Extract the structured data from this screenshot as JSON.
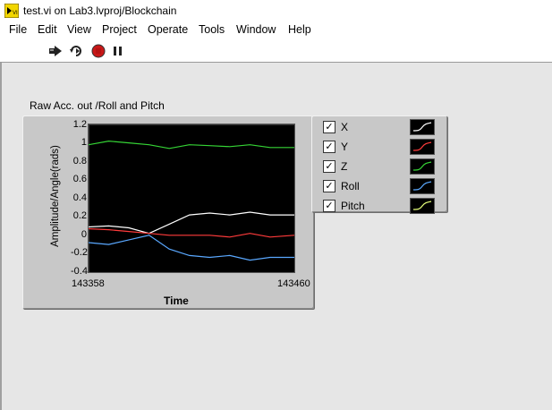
{
  "window": {
    "title": "test.vi on Lab3.lvproj/Blockchain"
  },
  "menu": [
    "File",
    "Edit",
    "View",
    "Project",
    "Operate",
    "Tools",
    "Window",
    "Help"
  ],
  "toolbar": {
    "buttons": [
      "run-arrow-icon",
      "run-continuously-icon",
      "abort-icon",
      "pause-icon"
    ]
  },
  "graph": {
    "label": "Raw Acc. out /Roll and Pitch",
    "ylabel": "Amplitude/Angle(rads)",
    "xlabel": "Time",
    "yticks": [
      "1.2",
      "1",
      "0.8",
      "0.6",
      "0.4",
      "0.2",
      "0",
      "-0.2",
      "-0.4"
    ],
    "xmin_label": "143358",
    "xmax_label": "143460"
  },
  "legend": {
    "items": [
      {
        "name": "X",
        "checked": true,
        "color": "#ffffff"
      },
      {
        "name": "Y",
        "checked": true,
        "color": "#ff3b3b"
      },
      {
        "name": "Z",
        "checked": true,
        "color": "#35d435"
      },
      {
        "name": "Roll",
        "checked": true,
        "color": "#5aa8ff"
      },
      {
        "name": "Pitch",
        "checked": true,
        "color": "#e6ff7a"
      }
    ]
  },
  "chart_data": {
    "type": "line",
    "xlabel": "Time",
    "ylabel": "Amplitude/Angle(rads)",
    "xlim": [
      143358,
      143460
    ],
    "ylim": [
      -0.4,
      1.2
    ],
    "x": [
      143358,
      143368,
      143378,
      143388,
      143398,
      143408,
      143418,
      143428,
      143438,
      143448,
      143460
    ],
    "series": [
      {
        "name": "X",
        "color": "#ffffff",
        "values": [
          0.09,
          0.1,
          0.08,
          0.02,
          0.12,
          0.22,
          0.24,
          0.22,
          0.25,
          0.22,
          0.22
        ]
      },
      {
        "name": "Y",
        "color": "#ff3b3b",
        "values": [
          0.07,
          0.06,
          0.04,
          0.02,
          0.0,
          0.0,
          0.0,
          -0.02,
          0.02,
          -0.02,
          0.0
        ]
      },
      {
        "name": "Z",
        "color": "#35d435",
        "values": [
          0.98,
          1.02,
          1.0,
          0.98,
          0.94,
          0.98,
          0.97,
          0.96,
          0.98,
          0.95,
          0.95
        ]
      },
      {
        "name": "Roll",
        "color": "#5aa8ff",
        "values": [
          -0.08,
          -0.1,
          -0.05,
          0.0,
          -0.15,
          -0.22,
          -0.24,
          -0.22,
          -0.27,
          -0.24,
          -0.24
        ]
      }
    ]
  }
}
